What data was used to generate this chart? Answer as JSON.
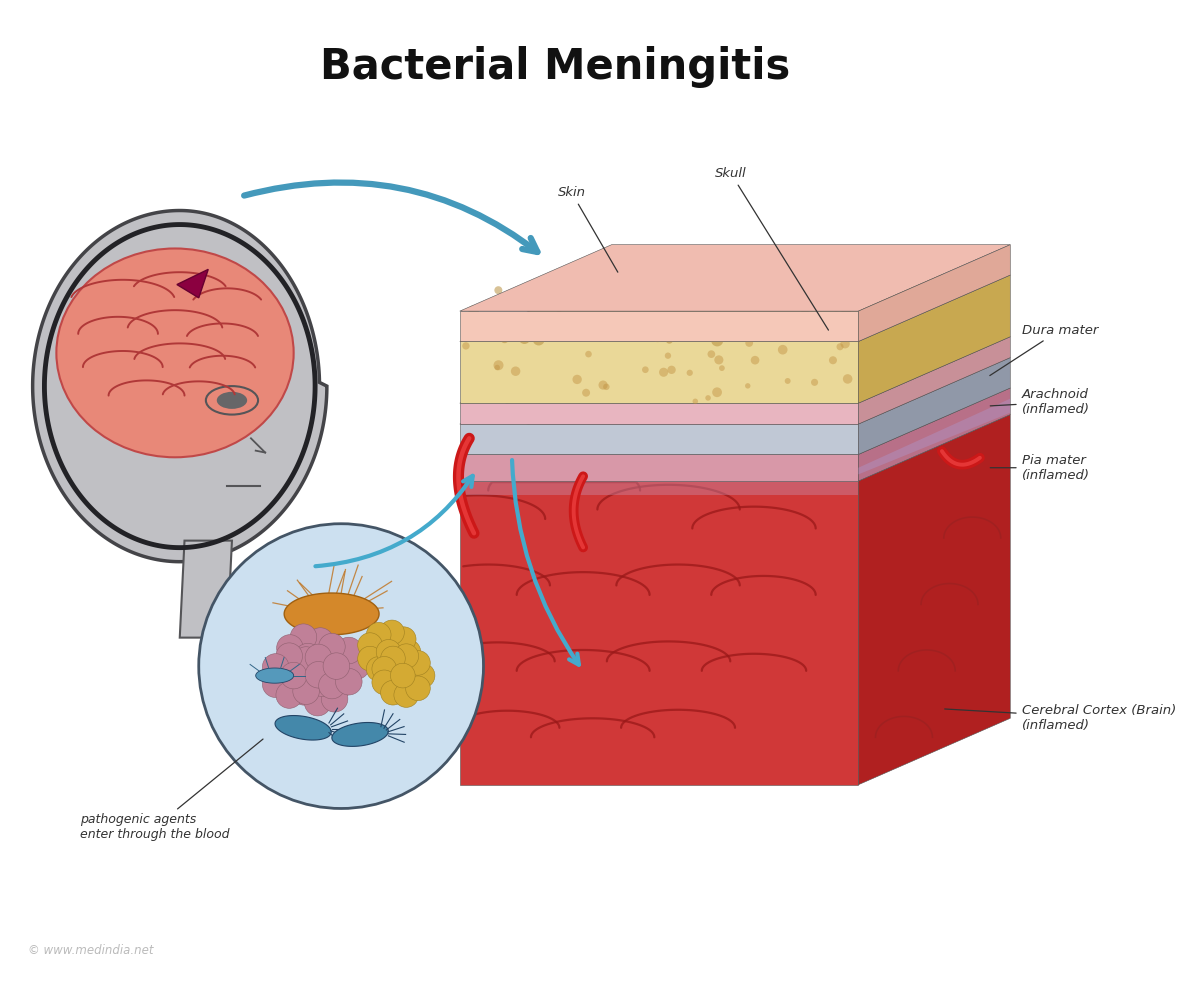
{
  "title": "Bacterial Meningitis",
  "title_fontsize": 30,
  "title_fontweight": "bold",
  "bg_color": "#ffffff",
  "watermark": "© www.medindia.net",
  "labels": {
    "skin": "Skin",
    "skull": "Skull",
    "dura_mater": "Dura mater",
    "arachnoid": "Arachnoid\n(inflamed)",
    "pia_mater": "Pia mater\n(inflamed)",
    "cerebral_cortex": "Cerebral Cortex (Brain)\n(inflamed)",
    "pathogens": "pathogenic agents\nenter through the blood"
  },
  "colors": {
    "skin_top": "#f2bfa8",
    "skin_side": "#e0a090",
    "skin_front": "#f5c8b5",
    "skull_top": "#e8cc88",
    "skull_side": "#c8a850",
    "skull_front": "#edd898",
    "dura_top": "#e8b0b8",
    "dura_side": "#cc9098",
    "dura_front": "#eebcc4",
    "arachnoid_top": "#b0b8cc",
    "arachnoid_side": "#9098b0",
    "arachnoid_front": "#c0c8d8",
    "pia_top": "#e89098",
    "pia_side": "#c87080",
    "pia_front": "#eea0a8",
    "brain_top": "#cc4040",
    "brain_side": "#aa2828",
    "brain_front": "#c83838",
    "brain_right": "#be3030",
    "blood_vessel": "#cc2020",
    "arrow_big": "#4499bb",
    "arrow_small": "#44aacc",
    "head_fill": "#c8c8cc",
    "head_outline": "#606064",
    "brain_salmon": "#e88878",
    "brain_dark": "#c05050",
    "bacteria_orange": "#d4882a",
    "bacteria_purple": "#aa6688",
    "bacteria_mauve": "#c08098",
    "bacteria_yellow": "#d4aa33",
    "bacteria_blue": "#4488aa",
    "bact_bg": "#cce0f0"
  }
}
